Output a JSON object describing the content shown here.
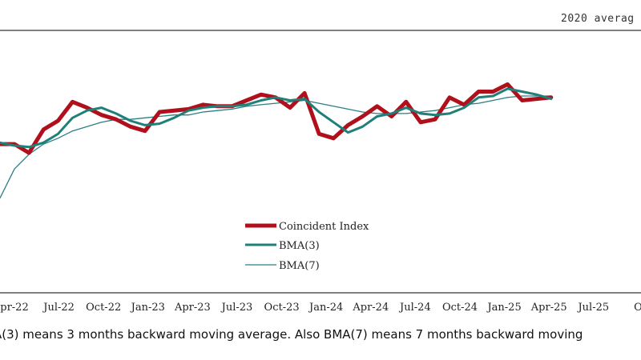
{
  "header": {
    "unit_text": "2020 averag"
  },
  "footnote": {
    "text": "A(3) means 3 months backward moving average. Also BMA(7) means 7 months backward moving"
  },
  "colors": {
    "coincident": "#b0101c",
    "bma3": "#1f8079",
    "bma7": "#2b7e86",
    "axis": "#000000"
  },
  "chart_data": {
    "type": "line",
    "x_tick_labels": [
      "pr-22",
      "Jul-22",
      "Oct-22",
      "Jan-23",
      "Apr-23",
      "Jul-23",
      "Oct-23",
      "Jan-24",
      "Apr-24",
      "Jul-24",
      "Oct-24",
      "Jan-25",
      "Apr-25",
      "Jul-25",
      "O"
    ],
    "x": [
      "2022-04",
      "2022-05",
      "2022-06",
      "2022-07",
      "2022-08",
      "2022-09",
      "2022-10",
      "2022-11",
      "2022-12",
      "2023-01",
      "2023-02",
      "2023-03",
      "2023-04",
      "2023-05",
      "2023-06",
      "2023-07",
      "2023-08",
      "2023-09",
      "2023-10",
      "2023-11",
      "2023-12",
      "2024-01",
      "2024-02",
      "2024-03",
      "2024-04",
      "2024-05",
      "2024-06",
      "2024-07",
      "2024-08",
      "2024-09",
      "2024-10",
      "2024-11",
      "2024-12",
      "2025-01",
      "2025-02",
      "2025-03",
      "2025-04",
      "2025-05",
      "2025-06"
    ],
    "ylim": [
      88,
      106
    ],
    "series": [
      {
        "name": "Coincident Index",
        "values": [
          98.2,
          98.2,
          97.6,
          99.2,
          99.8,
          101.1,
          100.7,
          100.2,
          99.9,
          99.4,
          99.1,
          100.4,
          100.5,
          100.6,
          100.9,
          100.8,
          100.8,
          101.2,
          101.6,
          101.4,
          100.7,
          101.7,
          98.9,
          98.6,
          99.5,
          100.1,
          100.8,
          100.1,
          101.1,
          99.7,
          99.9,
          101.4,
          100.9,
          101.8,
          101.8,
          102.3,
          101.2,
          101.3,
          101.4
        ]
      },
      {
        "name": "BMA(3)",
        "values": [
          98.3,
          98.1,
          98.0,
          98.3,
          98.9,
          100.0,
          100.5,
          100.7,
          100.3,
          99.8,
          99.5,
          99.6,
          100.0,
          100.5,
          100.7,
          100.8,
          100.8,
          100.9,
          101.2,
          101.4,
          101.2,
          101.3,
          100.4,
          99.7,
          99.0,
          99.4,
          100.1,
          100.3,
          100.7,
          100.3,
          100.2,
          100.3,
          100.7,
          101.4,
          101.5,
          102.0,
          101.8,
          101.6,
          101.3
        ]
      },
      {
        "name": "BMA(7)",
        "values": [
          94.5,
          96.5,
          97.5,
          98.2,
          98.6,
          99.1,
          99.4,
          99.7,
          99.9,
          99.9,
          100.0,
          100.1,
          100.2,
          100.2,
          100.4,
          100.5,
          100.6,
          100.8,
          100.9,
          101.0,
          101.1,
          101.2,
          101.0,
          100.8,
          100.6,
          100.4,
          100.3,
          100.3,
          100.3,
          100.4,
          100.5,
          100.7,
          100.9,
          101.0,
          101.2,
          101.4,
          101.5,
          101.5,
          101.5
        ]
      }
    ],
    "legend_position": "center-bottom",
    "grid": false
  }
}
